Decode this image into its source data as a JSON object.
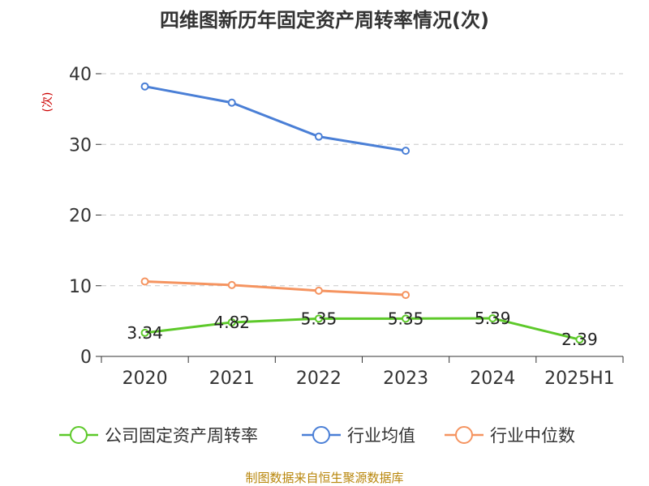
{
  "chart_data": {
    "type": "line",
    "title": "四维图新历年固定资产周转率情况(次)",
    "ylabel": "(次)",
    "ylim": [
      0,
      40
    ],
    "yticks": [
      0,
      10,
      20,
      30,
      40
    ],
    "grid": true,
    "legend_position": "bottom",
    "categories": [
      "2020",
      "2021",
      "2022",
      "2023",
      "2024",
      "2025H1"
    ],
    "series": [
      {
        "name": "公司固定资产周转率",
        "color": "#5dc92a",
        "values": [
          3.34,
          4.82,
          5.35,
          5.35,
          5.39,
          2.39
        ],
        "labels": [
          "3.34",
          "4.82",
          "5.35",
          "5.35",
          "5.39",
          "2.39"
        ]
      },
      {
        "name": "行业均值",
        "color": "#4a7fd6",
        "values": [
          38.2,
          35.9,
          31.1,
          29.1,
          null,
          null
        ]
      },
      {
        "name": "行业中位数",
        "color": "#f59460",
        "values": [
          10.6,
          10.1,
          9.3,
          8.7,
          null,
          null
        ]
      }
    ]
  },
  "source": "制图数据来自恒生聚源数据库"
}
